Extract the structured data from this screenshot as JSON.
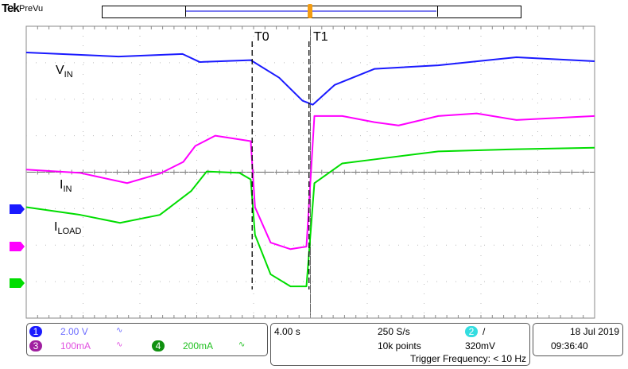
{
  "header": {
    "brand": "Tek",
    "mode": "PreVu"
  },
  "colors": {
    "ch1": "#1a1aff",
    "ch3": "#ff00ff",
    "ch4": "#00dd00",
    "ch2": "#33dde0",
    "trigger": "#f39c12"
  },
  "cursors": {
    "t0": "T0",
    "t1": "T1"
  },
  "labels": {
    "vin": {
      "main": "V",
      "sub": "IN"
    },
    "iin": {
      "main": "I",
      "sub": "IN"
    },
    "iload": {
      "main": "I",
      "sub": "LOAD"
    }
  },
  "channels": {
    "ch1": {
      "num": "1",
      "scale": "2.00 V"
    },
    "ch3": {
      "num": "3",
      "scale": "100mA"
    },
    "ch4": {
      "num": "4",
      "scale": "200mA"
    }
  },
  "timebase": {
    "scale": "4.00 s",
    "rate": "250 S/s",
    "points": "10k points"
  },
  "trigger": {
    "channel": "2",
    "slope": "/",
    "level": "320mV",
    "frequency": "Trigger Frequency: < 10 Hz"
  },
  "datetime": {
    "date": "18 Jul  2019",
    "time": "09:36:40"
  },
  "chart_data": {
    "type": "line",
    "xlabel": "",
    "ylabel": "",
    "x_units": "s",
    "y_units": "div",
    "xlim": [
      -20,
      20
    ],
    "ylim": [
      -4,
      4
    ],
    "grid": true,
    "cursors_t": [
      -4.1,
      -0.1
    ],
    "series": [
      {
        "name": "VIN",
        "color": "#1a1aff",
        "x": [
          -20,
          -13.5,
          -9,
          -7.8,
          -4.2,
          -2.2,
          -0.56,
          0.17,
          1.7,
          4.5,
          9,
          14.5,
          20
        ],
        "y": [
          3.28,
          3.17,
          3.24,
          3.02,
          3.07,
          2.59,
          1.96,
          1.85,
          2.39,
          2.83,
          2.93,
          3.15,
          3.04
        ]
      },
      {
        "name": "IIN",
        "color": "#ff00ff",
        "x": [
          -20,
          -16.2,
          -12.9,
          -10.6,
          -8.95,
          -8.1,
          -6.7,
          -4.2,
          -3.9,
          -2.8,
          -1.4,
          -0.28,
          0.28,
          2.24,
          4.5,
          6.2,
          9,
          11.7,
          14.5,
          20
        ],
        "y": [
          0.07,
          -0.02,
          -0.3,
          -0.04,
          0.28,
          0.72,
          1.0,
          0.85,
          -0.96,
          -1.93,
          -2.11,
          -2.04,
          1.54,
          1.54,
          1.37,
          1.28,
          1.54,
          1.61,
          1.43,
          1.54
        ]
      },
      {
        "name": "ILOAD",
        "color": "#00dd00",
        "x": [
          -20,
          -16.2,
          -13.4,
          -10.6,
          -8.4,
          -7.3,
          -5.0,
          -4.2,
          -3.9,
          -2.8,
          -1.4,
          -0.28,
          0.28,
          2.24,
          4.5,
          9,
          14.5,
          20
        ],
        "y": [
          -0.96,
          -1.17,
          -1.39,
          -1.17,
          -0.52,
          0.02,
          -0.02,
          -0.2,
          -1.72,
          -2.8,
          -3.13,
          -3.13,
          -0.3,
          0.24,
          0.35,
          0.57,
          0.63,
          0.67
        ]
      }
    ]
  }
}
